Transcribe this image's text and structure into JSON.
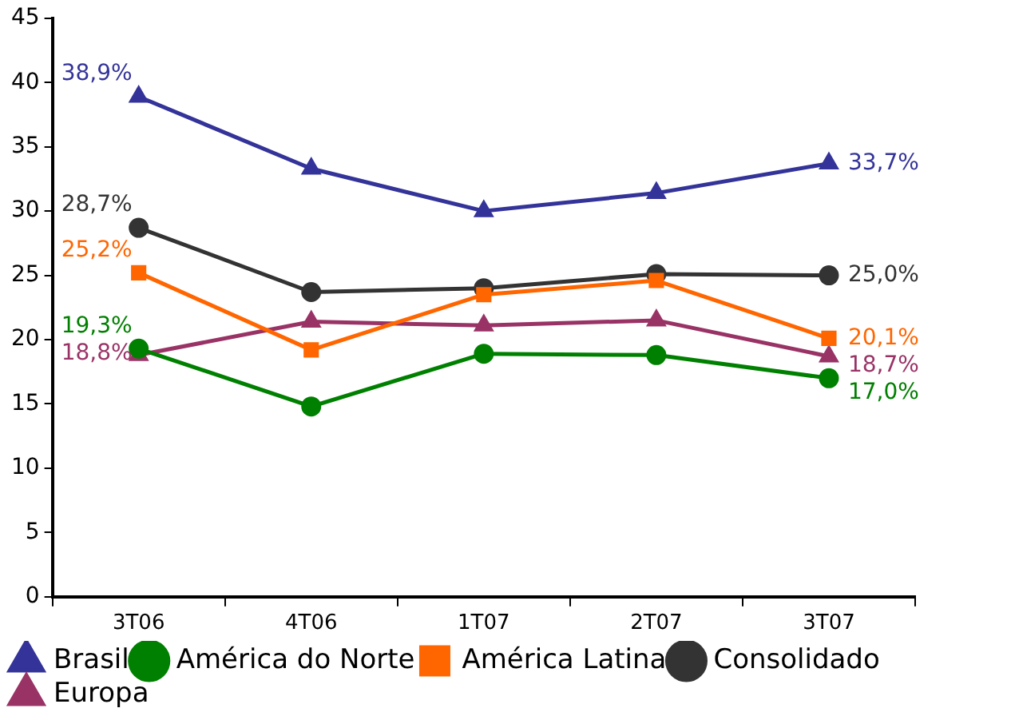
{
  "chart_data": {
    "type": "line",
    "categories": [
      "3T06",
      "4T06",
      "1T07",
      "2T07",
      "3T07"
    ],
    "ylim": [
      0,
      45
    ],
    "yticks": [
      0,
      5,
      10,
      15,
      20,
      25,
      30,
      35,
      40,
      45
    ],
    "grid": false,
    "legend": "bottom",
    "series": [
      {
        "name": "Brasil",
        "color": "#333399",
        "marker": "triangle",
        "values": [
          38.9,
          33.3,
          30.0,
          31.4,
          33.7
        ],
        "value_labels": [
          "38,9%",
          null,
          null,
          null,
          "33,7%"
        ]
      },
      {
        "name": "América do Norte",
        "color": "#008000",
        "marker": "circle",
        "values": [
          19.3,
          14.8,
          18.9,
          18.8,
          17.0
        ],
        "value_labels": [
          "19,3%",
          null,
          null,
          null,
          "17,0%"
        ]
      },
      {
        "name": "América Latina",
        "color": "#ff6600",
        "marker": "square",
        "values": [
          25.2,
          19.2,
          23.5,
          24.6,
          20.1
        ],
        "value_labels": [
          "25,2%",
          null,
          null,
          null,
          "20,1%"
        ]
      },
      {
        "name": "Consolidado",
        "color": "#333333",
        "marker": "circle",
        "values": [
          28.7,
          23.7,
          24.0,
          25.1,
          25.0
        ],
        "value_labels": [
          "28,7%",
          null,
          null,
          null,
          "25,0%"
        ]
      },
      {
        "name": "Europa",
        "color": "#993366",
        "marker": "triangle",
        "values": [
          18.8,
          21.4,
          21.1,
          21.5,
          18.7
        ],
        "value_labels": [
          "18,8%",
          null,
          null,
          null,
          "18,7%"
        ]
      }
    ]
  }
}
